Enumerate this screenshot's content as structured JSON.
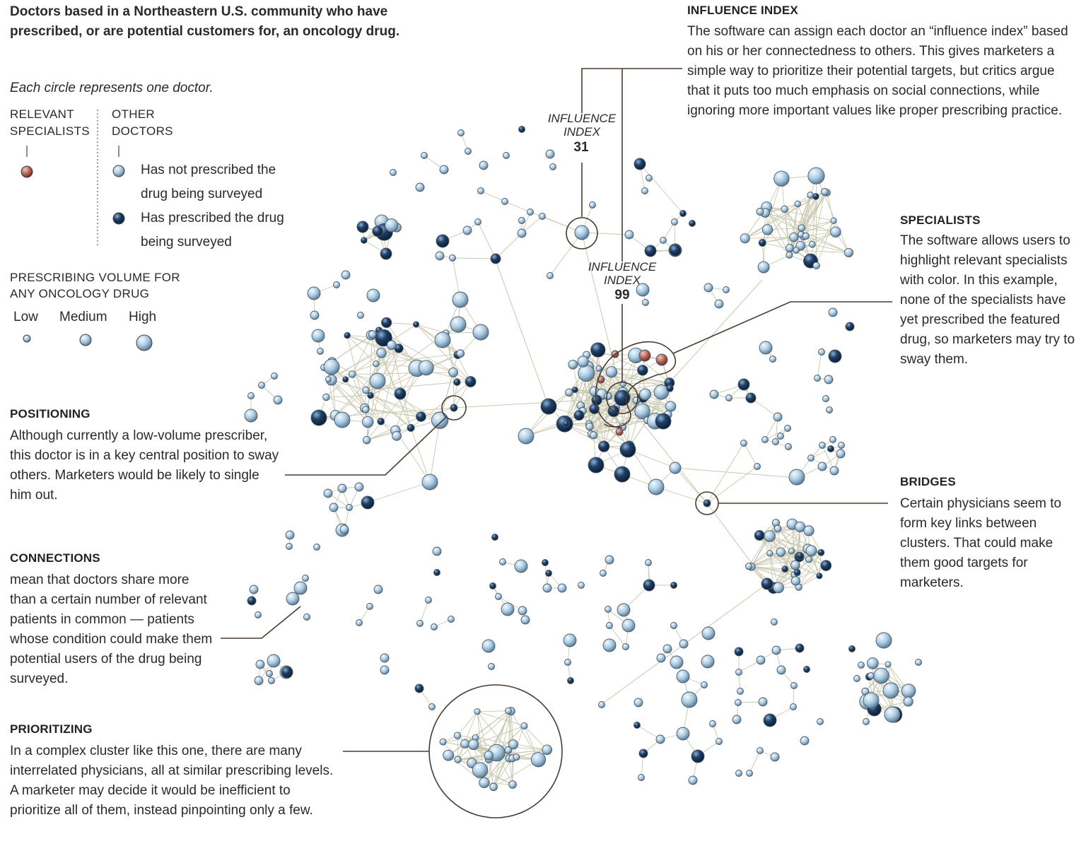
{
  "title": "Doctors based in a Northeastern U.S. community who have prescribed, or are potential customers for, an oncology drug.",
  "subtitle": "Each circle represents one doctor.",
  "legend": {
    "relevant_specialists": "RELEVANT SPECIALISTS",
    "other_doctors": "OTHER DOCTORS",
    "not_prescribed": "Has not prescribed the drug being surveyed",
    "prescribed": "Has prescribed the drug being surveyed",
    "volume_title": "PRESCRIBING VOLUME FOR ANY ONCOLOGY DRUG",
    "volume_low": "Low",
    "volume_medium": "Medium",
    "volume_high": "High",
    "colors": {
      "specialist": "#b5665a",
      "not_prescribed": "#a9cbe3",
      "prescribed": "#1e3f66",
      "connection": "#c9c7ae"
    }
  },
  "annotations": {
    "positioning": {
      "heading": "POSITIONING",
      "body": "Although currently a low-volume prescriber, this doctor is in a key central position to sway others. Marketers would be likely to single him out."
    },
    "connections": {
      "heading": "CONNECTIONS",
      "body": "mean that doctors share more than a certain number of relevant patients in common — patients whose condition could make them potential users of the drug being surveyed."
    },
    "prioritizing": {
      "heading": "PRIORITIZING",
      "body": "In a complex cluster like this one, there are many interrelated physicians, all at similar prescribing levels. A marketer may decide it would be inefficient to prioritize all of them, instead pinpointing only a few."
    },
    "influence_index": {
      "heading": "INFLUENCE INDEX",
      "body": "The software can assign each doctor an “influence index” based on his or her connectedness to others. This gives marketers a simple way to prioritize their potential targets, but critics argue that it puts too much emphasis on social connections, while ignoring more important values like proper prescribing practice."
    },
    "specialists": {
      "heading": "SPECIALISTS",
      "body": "The software allows users to highlight relevant specialists with color. In this example, none of the specialists have yet prescribed the featured drug, so marketers may try to sway them."
    },
    "bridges": {
      "heading": "BRIDGES",
      "body": "Certain physicians seem to form key links between clusters. That could make them good targets for marketers."
    }
  },
  "influence_callouts": [
    {
      "label": "INFLUENCE INDEX",
      "value": "31"
    },
    {
      "label": "INFLUENCE INDEX",
      "value": "99"
    }
  ]
}
